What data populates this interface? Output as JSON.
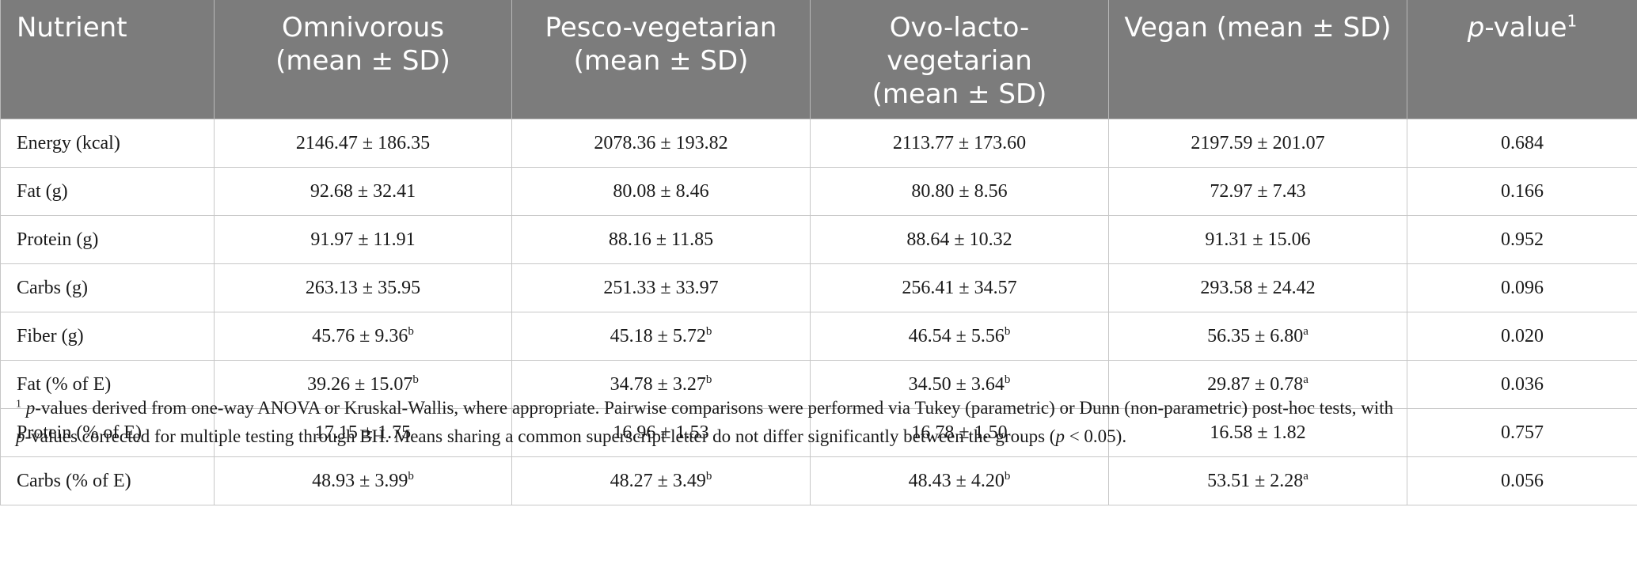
{
  "table": {
    "headers": [
      "Nutrient",
      "Omnivorous (mean ± SD)",
      "Pesco-vegetarian (mean ± SD)",
      "Ovo-lacto-vegetarian (mean ± SD)",
      "Vegan (mean ± SD)",
      "p-value"
    ],
    "header_lines": {
      "omnivorous": [
        "Omnivorous",
        "(mean ± SD)"
      ],
      "pesco": [
        "Pesco-vegetarian",
        "(mean ± SD)"
      ],
      "ovo": [
        "Ovo-lacto-",
        "vegetarian",
        "(mean ± SD)"
      ],
      "vegan": [
        "Vegan (mean ± SD)"
      ],
      "pvalue_italic": "p",
      "pvalue_rest": "-value",
      "pvalue_sup": "1"
    },
    "rows": [
      {
        "nutrient": "Energy (kcal)",
        "omni": "2146.47 ± 186.35",
        "omni_sup": "",
        "pesco": "2078.36 ± 193.82",
        "pesco_sup": "",
        "ovo": "2113.77 ± 173.60",
        "ovo_sup": "",
        "vegan": "2197.59 ± 201.07",
        "vegan_sup": "",
        "p": "0.684"
      },
      {
        "nutrient": "Fat (g)",
        "omni": "92.68 ± 32.41",
        "omni_sup": "",
        "pesco": "80.08 ± 8.46",
        "pesco_sup": "",
        "ovo": "80.80 ± 8.56",
        "ovo_sup": "",
        "vegan": "72.97 ± 7.43",
        "vegan_sup": "",
        "p": "0.166"
      },
      {
        "nutrient": "Protein (g)",
        "omni": "91.97 ± 11.91",
        "omni_sup": "",
        "pesco": "88.16 ± 11.85",
        "pesco_sup": "",
        "ovo": "88.64 ± 10.32",
        "ovo_sup": "",
        "vegan": "91.31 ± 15.06",
        "vegan_sup": "",
        "p": "0.952"
      },
      {
        "nutrient": "Carbs (g)",
        "omni": "263.13 ± 35.95",
        "omni_sup": "",
        "pesco": "251.33 ± 33.97",
        "pesco_sup": "",
        "ovo": "256.41 ± 34.57",
        "ovo_sup": "",
        "vegan": "293.58 ± 24.42",
        "vegan_sup": "",
        "p": "0.096"
      },
      {
        "nutrient": "Fiber (g)",
        "omni": "45.76 ± 9.36",
        "omni_sup": "b",
        "pesco": "45.18 ± 5.72",
        "pesco_sup": "b",
        "ovo": "46.54 ± 5.56",
        "ovo_sup": "b",
        "vegan": "56.35 ± 6.80",
        "vegan_sup": "a",
        "p": "0.020"
      },
      {
        "nutrient": "Fat (% of E)",
        "omni": "39.26 ± 15.07",
        "omni_sup": "b",
        "pesco": "34.78 ± 3.27",
        "pesco_sup": "b",
        "ovo": "34.50 ± 3.64",
        "ovo_sup": "b",
        "vegan": "29.87 ± 0.78",
        "vegan_sup": "a",
        "p": "0.036"
      },
      {
        "nutrient": "Protein (% of E)",
        "omni": "17.15 ± 1.75",
        "omni_sup": "",
        "pesco": "16.96 ± 1.53",
        "pesco_sup": "",
        "ovo": "16.78 ± 1.50",
        "ovo_sup": "",
        "vegan": "16.58 ± 1.82",
        "vegan_sup": "",
        "p": "0.757"
      },
      {
        "nutrient": "Carbs (% of E)",
        "omni": "48.93 ± 3.99",
        "omni_sup": "b",
        "pesco": "48.27 ± 3.49",
        "pesco_sup": "b",
        "ovo": "48.43 ± 4.20",
        "ovo_sup": "b",
        "vegan": "53.51 ± 2.28",
        "vegan_sup": "a",
        "p": "0.056"
      }
    ]
  },
  "footnote": {
    "sup": "1",
    "p1": "p",
    "text1": "-values derived from one-way ANOVA or Kruskal-Wallis, where appropriate. Pairwise comparisons were performed via Tukey (parametric) or Dunn (non-parametric) post-hoc tests, with",
    "p2": "p",
    "text2": "-values corrected for multiple testing through BH. Means sharing a common superscript letter do not differ significantly between the groups (",
    "p3": "p",
    "text3": " < 0.05)."
  },
  "colors": {
    "header_bg": "#7c7c7c",
    "header_text": "#ffffff",
    "grid": "#c7c7c7",
    "body_text": "#1a1a1a"
  }
}
